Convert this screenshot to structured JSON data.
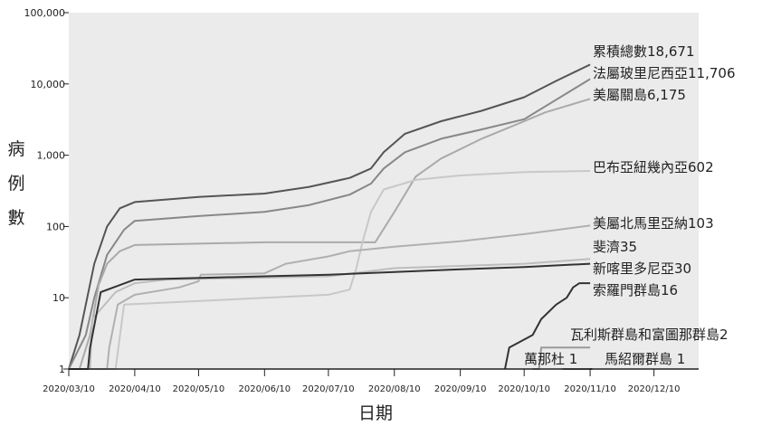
{
  "chart_data": {
    "type": "line",
    "xlabel": "日期",
    "ylabel": [
      "病",
      "例",
      "數"
    ],
    "y_scale": "log",
    "ylim": [
      1,
      100000
    ],
    "xlim": [
      "2020-03-10",
      "2020-12-31"
    ],
    "y_ticks": [
      "1",
      "10",
      "100",
      "1,000",
      "10,000",
      "100,000"
    ],
    "x_ticks": [
      "2020/03/10",
      "2020/04/10",
      "2020/05/10",
      "2020/06/10",
      "2020/07/10",
      "2020/08/10",
      "2020/09/10",
      "2020/10/10",
      "2020/11/10",
      "2020/12/10"
    ],
    "grid": false,
    "series": [
      {
        "name": "累積總數18,671",
        "color": "#555555",
        "points": [
          [
            "2020-03-10",
            1
          ],
          [
            "2020-03-15",
            3
          ],
          [
            "2020-03-18",
            8
          ],
          [
            "2020-03-22",
            30
          ],
          [
            "2020-03-28",
            100
          ],
          [
            "2020-04-03",
            180
          ],
          [
            "2020-04-10",
            220
          ],
          [
            "2020-05-10",
            260
          ],
          [
            "2020-06-10",
            290
          ],
          [
            "2020-07-01",
            360
          ],
          [
            "2020-07-20",
            480
          ],
          [
            "2020-07-30",
            650
          ],
          [
            "2020-08-05",
            1100
          ],
          [
            "2020-08-15",
            2000
          ],
          [
            "2020-09-01",
            3000
          ],
          [
            "2020-09-20",
            4200
          ],
          [
            "2020-10-10",
            6500
          ],
          [
            "2020-10-25",
            11000
          ],
          [
            "2020-11-10",
            18671
          ]
        ]
      },
      {
        "name": "法屬玻里尼西亞11,706",
        "color": "#888888",
        "points": [
          [
            "2020-03-10",
            1
          ],
          [
            "2020-03-18",
            3
          ],
          [
            "2020-03-22",
            10
          ],
          [
            "2020-03-28",
            40
          ],
          [
            "2020-04-05",
            90
          ],
          [
            "2020-04-10",
            120
          ],
          [
            "2020-05-10",
            140
          ],
          [
            "2020-06-10",
            160
          ],
          [
            "2020-07-01",
            200
          ],
          [
            "2020-07-20",
            280
          ],
          [
            "2020-07-30",
            400
          ],
          [
            "2020-08-05",
            650
          ],
          [
            "2020-08-15",
            1100
          ],
          [
            "2020-09-01",
            1700
          ],
          [
            "2020-09-20",
            2300
          ],
          [
            "2020-10-10",
            3200
          ],
          [
            "2020-10-25",
            6000
          ],
          [
            "2020-11-10",
            11706
          ]
        ]
      },
      {
        "name": "美屬關島6,175",
        "color": "#aaaaaa",
        "points": [
          [
            "2020-03-10",
            1
          ],
          [
            "2020-03-15",
            1
          ],
          [
            "2020-03-20",
            3
          ],
          [
            "2020-03-24",
            15
          ],
          [
            "2020-03-28",
            30
          ],
          [
            "2020-04-03",
            45
          ],
          [
            "2020-04-10",
            55
          ],
          [
            "2020-06-10",
            60
          ],
          [
            "2020-08-01",
            60
          ],
          [
            "2020-08-10",
            160
          ],
          [
            "2020-08-20",
            500
          ],
          [
            "2020-09-01",
            900
          ],
          [
            "2020-09-20",
            1700
          ],
          [
            "2020-10-05",
            2600
          ],
          [
            "2020-10-20",
            4000
          ],
          [
            "2020-11-10",
            6175
          ]
        ]
      },
      {
        "name": "巴布亞紐幾內亞602",
        "color": "#c8c8c8",
        "points": [
          [
            "2020-03-10",
            1
          ],
          [
            "2020-03-31",
            1
          ],
          [
            "2020-04-01",
            1
          ],
          [
            "2020-04-05",
            8
          ],
          [
            "2020-07-10",
            11
          ],
          [
            "2020-07-20",
            13
          ],
          [
            "2020-07-23",
            25
          ],
          [
            "2020-07-26",
            60
          ],
          [
            "2020-07-30",
            160
          ],
          [
            "2020-08-05",
            330
          ],
          [
            "2020-08-20",
            450
          ],
          [
            "2020-09-10",
            520
          ],
          [
            "2020-10-10",
            580
          ],
          [
            "2020-11-10",
            602
          ]
        ]
      },
      {
        "name": "美屬北馬里亞納103",
        "color": "#b0b0b0",
        "points": [
          [
            "2020-03-10",
            1
          ],
          [
            "2020-03-28",
            1
          ],
          [
            "2020-03-29",
            2
          ],
          [
            "2020-04-02",
            8
          ],
          [
            "2020-04-10",
            11
          ],
          [
            "2020-05-01",
            14
          ],
          [
            "2020-05-10",
            17
          ],
          [
            "2020-05-11",
            21
          ],
          [
            "2020-06-10",
            22
          ],
          [
            "2020-06-20",
            30
          ],
          [
            "2020-07-10",
            38
          ],
          [
            "2020-07-20",
            45
          ],
          [
            "2020-08-10",
            52
          ],
          [
            "2020-09-10",
            62
          ],
          [
            "2020-10-10",
            78
          ],
          [
            "2020-11-10",
            103
          ]
        ]
      },
      {
        "name": "斐濟35",
        "color": "#bdbdbd",
        "points": [
          [
            "2020-03-10",
            1
          ],
          [
            "2020-03-20",
            1
          ],
          [
            "2020-03-21",
            5
          ],
          [
            "2020-04-01",
            12
          ],
          [
            "2020-04-10",
            16
          ],
          [
            "2020-04-25",
            18
          ],
          [
            "2020-07-10",
            20
          ],
          [
            "2020-08-10",
            26
          ],
          [
            "2020-09-10",
            28
          ],
          [
            "2020-10-10",
            30
          ],
          [
            "2020-11-10",
            35
          ]
        ]
      },
      {
        "name": "新喀里多尼亞30",
        "color": "#333333",
        "points": [
          [
            "2020-03-10",
            1
          ],
          [
            "2020-03-19",
            1
          ],
          [
            "2020-03-20",
            2
          ],
          [
            "2020-03-25",
            12
          ],
          [
            "2020-04-10",
            18
          ],
          [
            "2020-06-10",
            20
          ],
          [
            "2020-07-10",
            21
          ],
          [
            "2020-08-10",
            23
          ],
          [
            "2020-09-10",
            25
          ],
          [
            "2020-10-10",
            27
          ],
          [
            "2020-11-10",
            30
          ]
        ]
      },
      {
        "name": "索羅門群島16",
        "color": "#333333",
        "points": [
          [
            "2020-10-01",
            1
          ],
          [
            "2020-10-03",
            2
          ],
          [
            "2020-10-14",
            3
          ],
          [
            "2020-10-18",
            5
          ],
          [
            "2020-10-25",
            8
          ],
          [
            "2020-10-30",
            10
          ],
          [
            "2020-11-02",
            14
          ],
          [
            "2020-11-05",
            16
          ],
          [
            "2020-11-10",
            16
          ]
        ]
      },
      {
        "name": "瓦利斯群島和富圖那群島2",
        "color": "#999999",
        "points": [
          [
            "2020-10-14",
            1
          ],
          [
            "2020-10-17",
            1
          ],
          [
            "2020-10-18",
            2
          ],
          [
            "2020-11-10",
            2
          ]
        ]
      },
      {
        "name": "萬那杜 1",
        "color": "#333333",
        "points": [
          [
            "2020-11-10",
            1
          ],
          [
            "2020-11-11",
            1
          ]
        ]
      },
      {
        "name": "馬紹爾群島 1",
        "color": "#777777",
        "points": [
          [
            "2020-10-28",
            1
          ],
          [
            "2020-11-10",
            1
          ]
        ]
      }
    ]
  }
}
